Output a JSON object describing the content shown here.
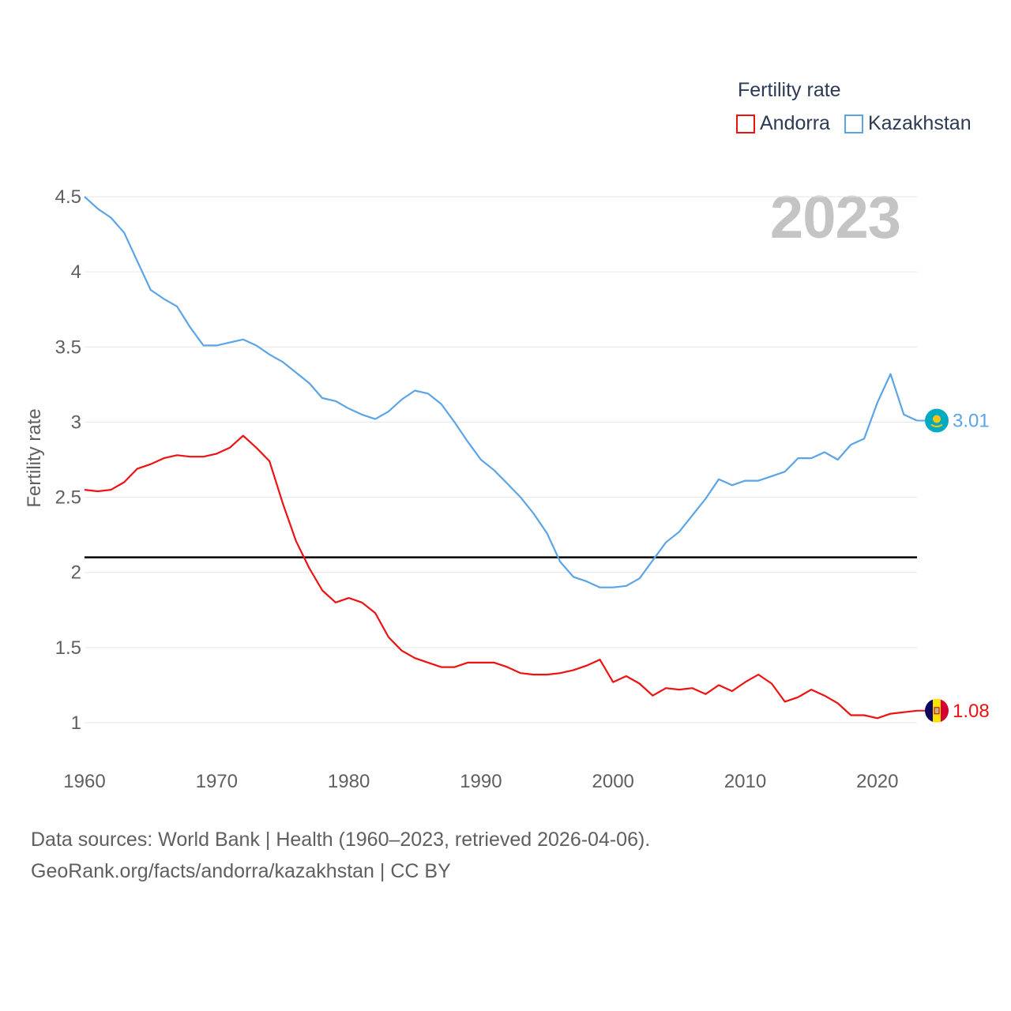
{
  "chart_data": {
    "type": "line",
    "legend_title": "Fertility rate",
    "year_label": "2023",
    "ylabel": "Fertility rate",
    "xlabel": "",
    "xlim": [
      1960,
      2023
    ],
    "ylim": [
      0.85,
      4.55
    ],
    "x_ticks": [
      "1960",
      "1970",
      "1980",
      "1990",
      "2000",
      "2010",
      "2020"
    ],
    "y_ticks": [
      "1",
      "1.5",
      "2",
      "2.5",
      "3",
      "3.5",
      "4",
      "4.5"
    ],
    "reference_line": {
      "value": 2.1,
      "color": "#000000"
    },
    "x": [
      1960,
      1961,
      1962,
      1963,
      1964,
      1965,
      1966,
      1967,
      1968,
      1969,
      1970,
      1971,
      1972,
      1973,
      1974,
      1975,
      1976,
      1977,
      1978,
      1979,
      1980,
      1981,
      1982,
      1983,
      1984,
      1985,
      1986,
      1987,
      1988,
      1989,
      1990,
      1991,
      1992,
      1993,
      1994,
      1995,
      1996,
      1997,
      1998,
      1999,
      2000,
      2001,
      2002,
      2003,
      2004,
      2005,
      2006,
      2007,
      2008,
      2009,
      2010,
      2011,
      2012,
      2013,
      2014,
      2015,
      2016,
      2017,
      2018,
      2019,
      2020,
      2021,
      2022,
      2023
    ],
    "series": [
      {
        "name": "Andorra",
        "color": "#ee1111",
        "end_label": "1.08",
        "values": [
          2.55,
          2.54,
          2.55,
          2.6,
          2.69,
          2.72,
          2.76,
          2.78,
          2.77,
          2.77,
          2.79,
          2.83,
          2.91,
          2.83,
          2.74,
          2.46,
          2.21,
          2.03,
          1.88,
          1.8,
          1.83,
          1.8,
          1.73,
          1.57,
          1.48,
          1.43,
          1.4,
          1.37,
          1.37,
          1.4,
          1.4,
          1.4,
          1.37,
          1.33,
          1.32,
          1.32,
          1.33,
          1.35,
          1.38,
          1.42,
          1.27,
          1.31,
          1.26,
          1.18,
          1.23,
          1.22,
          1.23,
          1.19,
          1.25,
          1.21,
          1.27,
          1.32,
          1.26,
          1.14,
          1.17,
          1.22,
          1.18,
          1.13,
          1.05,
          1.05,
          1.03,
          1.06,
          1.07,
          1.08
        ]
      },
      {
        "name": "Kazakhstan",
        "color": "#5ba4e5",
        "end_label": "3.01",
        "values": [
          4.5,
          4.42,
          4.36,
          4.26,
          4.07,
          3.88,
          3.82,
          3.77,
          3.63,
          3.51,
          3.51,
          3.53,
          3.55,
          3.51,
          3.45,
          3.4,
          3.33,
          3.26,
          3.16,
          3.14,
          3.09,
          3.05,
          3.02,
          3.07,
          3.15,
          3.21,
          3.19,
          3.12,
          3.0,
          2.87,
          2.75,
          2.68,
          2.59,
          2.5,
          2.39,
          2.26,
          2.07,
          1.97,
          1.94,
          1.9,
          1.9,
          1.91,
          1.96,
          2.08,
          2.2,
          2.27,
          2.38,
          2.49,
          2.62,
          2.58,
          2.61,
          2.61,
          2.64,
          2.67,
          2.76,
          2.76,
          2.8,
          2.75,
          2.85,
          2.89,
          3.13,
          3.32,
          3.05,
          3.01
        ]
      }
    ]
  },
  "footer": {
    "line1": "Data sources: World Bank | Health (1960–2023, retrieved 2026-04-06).",
    "line2": "GeoRank.org/facts/andorra/kazakhstan | CC BY"
  },
  "icons": {
    "andorra": "andorra-flag-icon",
    "kazakhstan": "kazakhstan-flag-icon"
  }
}
